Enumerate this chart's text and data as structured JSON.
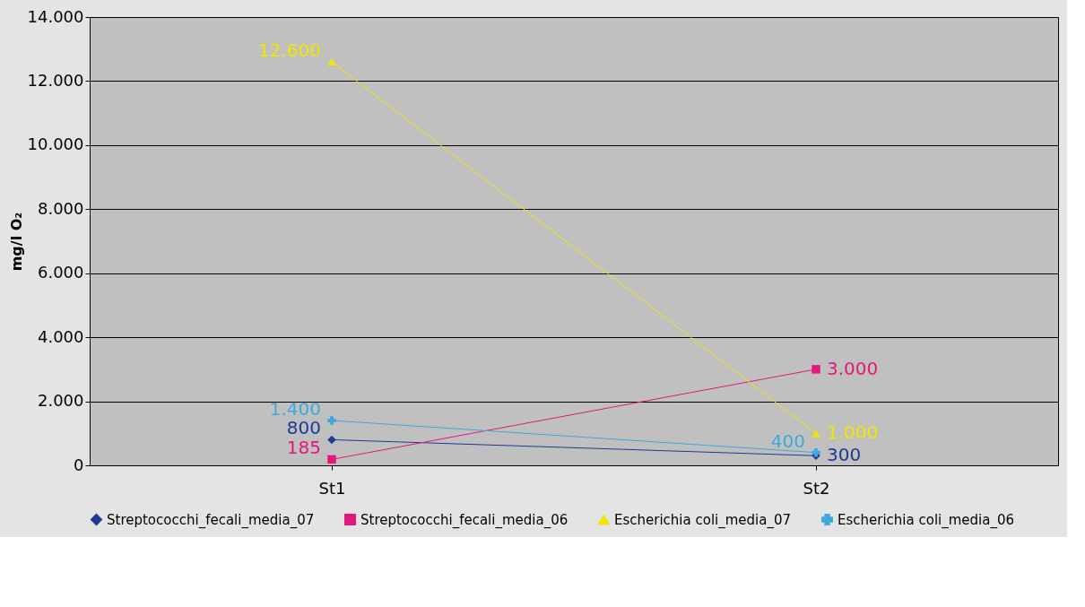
{
  "chart_data": {
    "type": "line",
    "ylabel": "mg/l O₂",
    "categories": [
      "St1",
      "St2"
    ],
    "series": [
      {
        "name": "Streptococchi_fecali_media_07",
        "color": "#1f3a93",
        "marker": "diamond",
        "values": [
          800,
          300
        ],
        "value_labels": [
          "800",
          "300"
        ]
      },
      {
        "name": "Streptococchi_fecali_media_06",
        "color": "#e0197a",
        "marker": "square",
        "values": [
          185,
          3000
        ],
        "value_labels": [
          "185",
          "3.000"
        ]
      },
      {
        "name": "Escherichia coli_media_07",
        "color": "#f2e600",
        "marker": "triangle",
        "values": [
          12600,
          1000
        ],
        "value_labels": [
          "12.600",
          "1.000"
        ]
      },
      {
        "name": "Escherichia coli_media_06",
        "color": "#3fa9d9",
        "marker": "cross",
        "values": [
          1400,
          400
        ],
        "value_labels": [
          "1.400",
          "400"
        ]
      }
    ],
    "ylim": [
      0,
      14000
    ],
    "yticks": [
      0,
      {
        "value": 2000,
        "label": "2.000"
      },
      {
        "value": 4000,
        "label": "4.000"
      },
      {
        "value": 6000,
        "label": "6.000"
      },
      {
        "value": 8000,
        "label": "8.000"
      },
      {
        "value": 10000,
        "label": "10.000"
      },
      {
        "value": 12000,
        "label": "12.000"
      },
      {
        "value": 14000,
        "label": "14.000"
      }
    ],
    "grid": "y",
    "legend": "bottom"
  }
}
